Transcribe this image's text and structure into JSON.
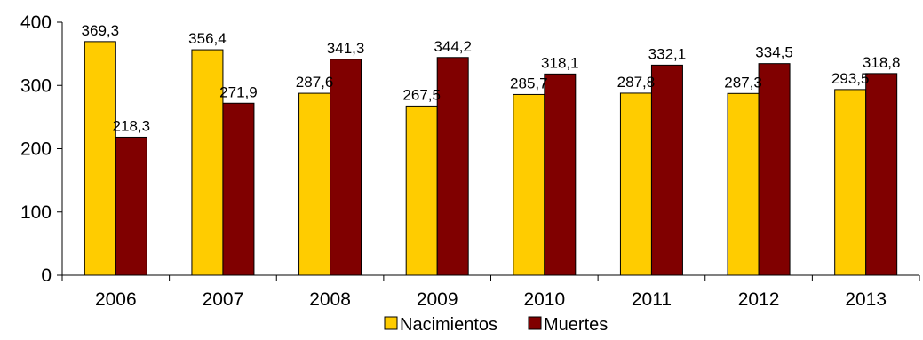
{
  "chart_data": {
    "type": "bar",
    "categories": [
      "2006",
      "2007",
      "2008",
      "2009",
      "2010",
      "2011",
      "2012",
      "2013"
    ],
    "series": [
      {
        "name": "Nacimientos",
        "color": "#FFCC00",
        "values": [
          369.3,
          356.4,
          287.6,
          267.5,
          285.7,
          287.8,
          287.3,
          293.5
        ],
        "labels": [
          "369,3",
          "356,4",
          "287,6",
          "267,5",
          "285,7",
          "287,8",
          "287,3",
          "293,5"
        ]
      },
      {
        "name": "Muertes",
        "color": "#800000",
        "values": [
          218.3,
          271.9,
          341.3,
          344.2,
          318.1,
          332.1,
          334.5,
          318.8
        ],
        "labels": [
          "218,3",
          "271,9",
          "341,3",
          "344,2",
          "318,1",
          "332,1",
          "334,5",
          "318,8"
        ]
      }
    ],
    "yticks": [
      "0",
      "100",
      "200",
      "300",
      "400"
    ],
    "ylim": [
      0,
      400
    ],
    "grid": false,
    "legend": "bottom"
  }
}
